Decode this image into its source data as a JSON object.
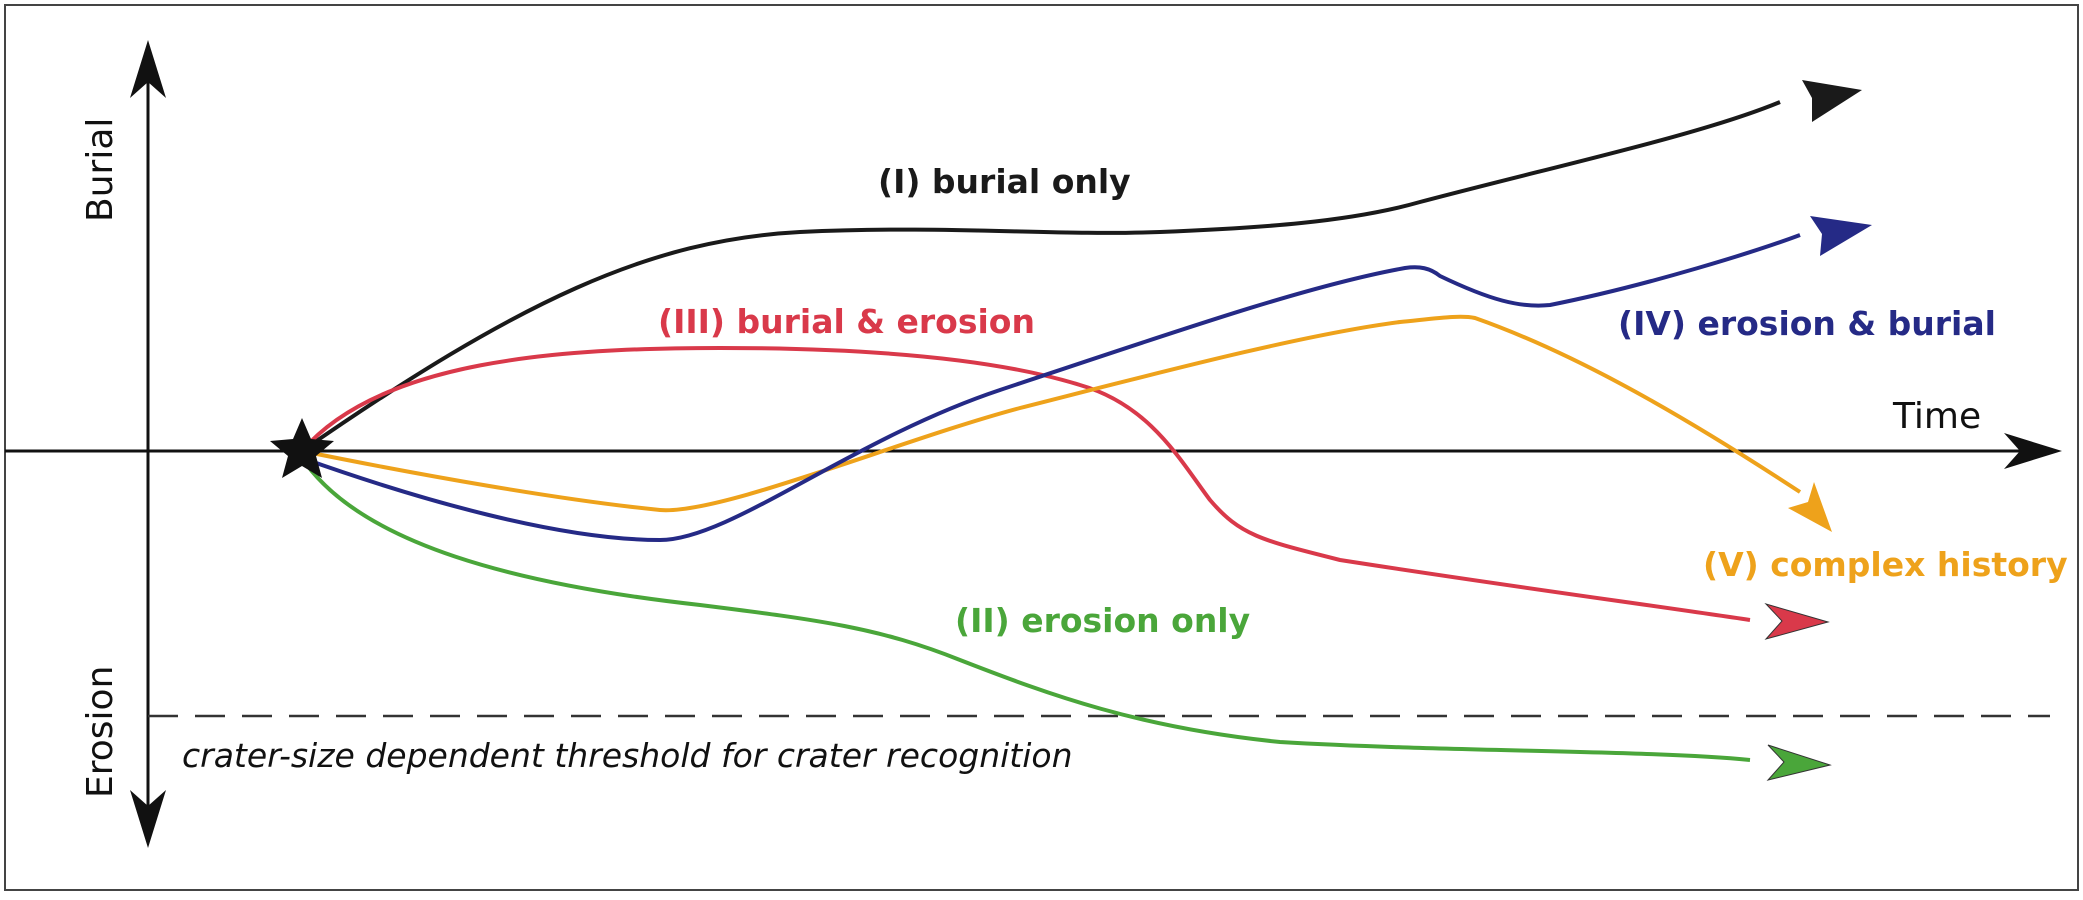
{
  "axes": {
    "x_label": "Time",
    "y_positive_label": "Burial",
    "y_negative_label": "Erosion"
  },
  "threshold": {
    "label": "crater-size dependent threshold for crater recognition"
  },
  "origin_marker": "star-icon",
  "paths": [
    {
      "id": "burial-only",
      "label": "(I) burial only",
      "color": "#1a1a1a"
    },
    {
      "id": "erosion-only",
      "label": "(II) erosion only",
      "color": "#4aa63a"
    },
    {
      "id": "burial-erosion",
      "label": "(III) burial & erosion",
      "color": "#d9394a"
    },
    {
      "id": "erosion-burial",
      "label": "(IV) erosion & burial",
      "color": "#252a86"
    },
    {
      "id": "complex-history",
      "label": "(V) complex history",
      "color": "#eea21b"
    }
  ]
}
